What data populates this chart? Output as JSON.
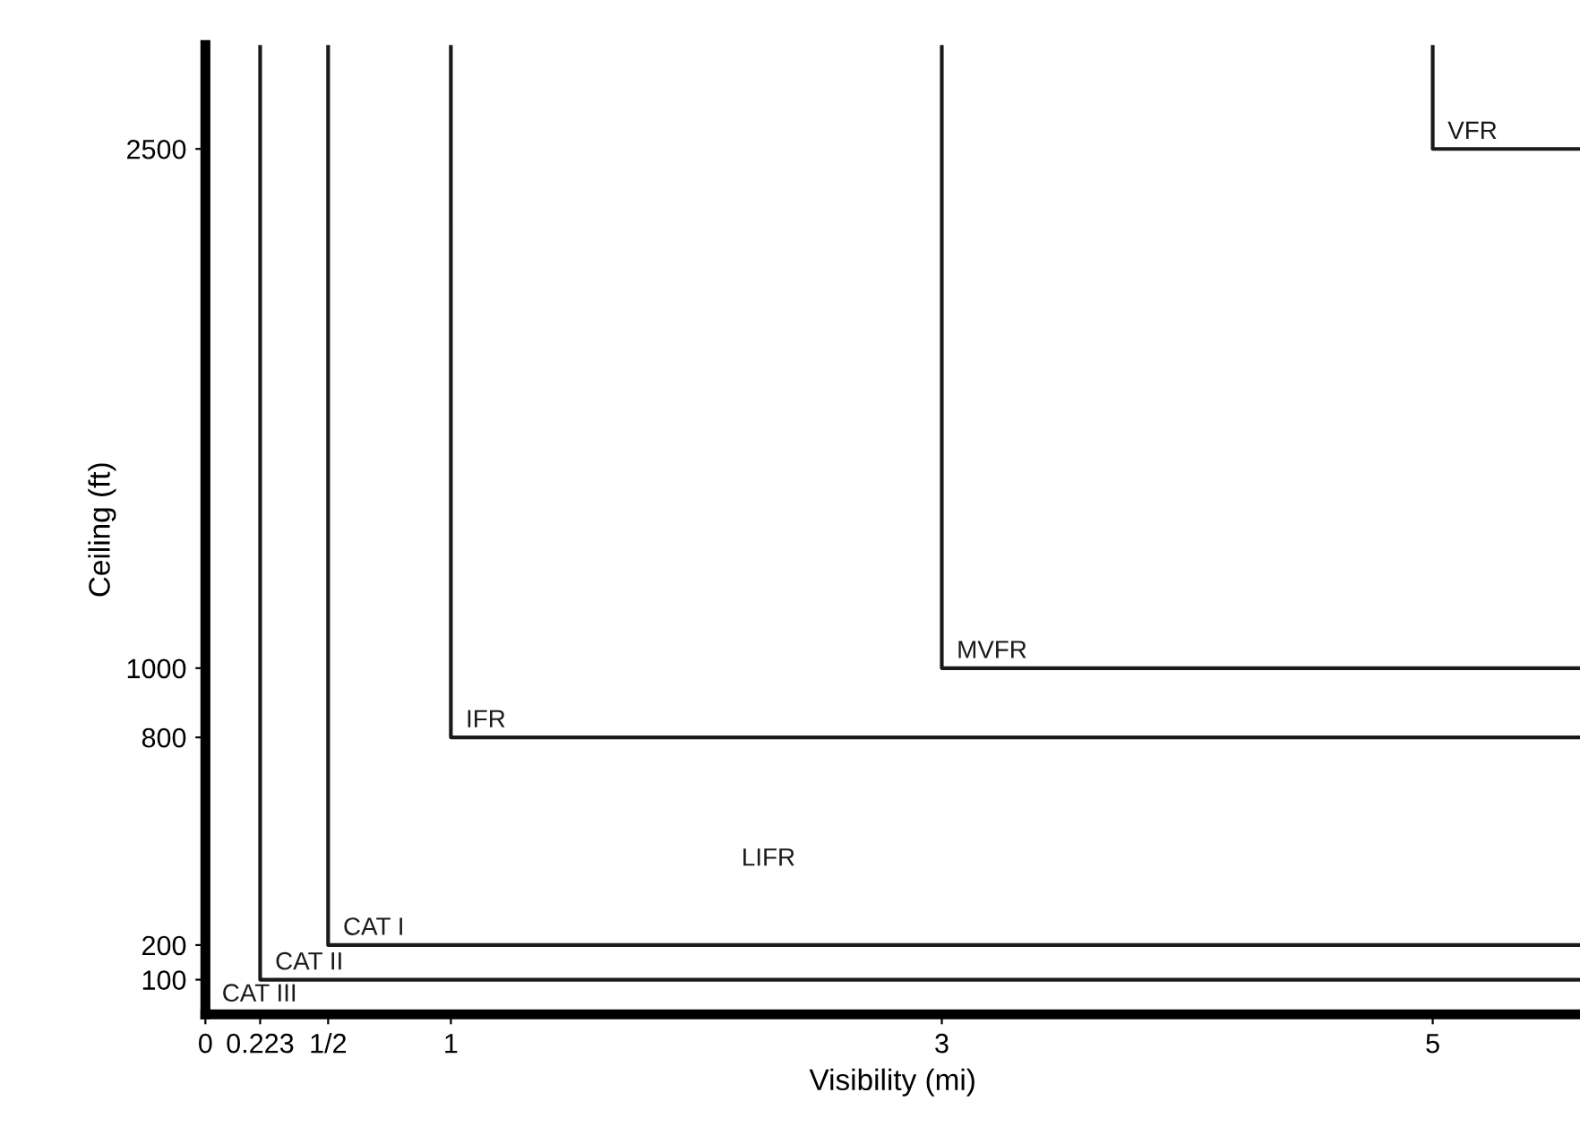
{
  "chart_data": {
    "type": "line",
    "xlabel": "Visibility (mi)",
    "ylabel": "Ceiling (ft)",
    "series": [
      {
        "name": "VFR",
        "color": "#1a1a1a",
        "x": [
          5,
          5,
          5.6
        ],
        "values": [
          2800,
          2500,
          2500
        ]
      },
      {
        "name": "MVFR",
        "color": "#1a1a1a",
        "x": [
          3,
          3,
          5.6
        ],
        "values": [
          2800,
          1000,
          1000
        ]
      },
      {
        "name": "IFR",
        "color": "#1a1a1a",
        "x": [
          1,
          1,
          5.6
        ],
        "values": [
          2800,
          800,
          800
        ]
      },
      {
        "name": "CAT I",
        "color": "#1a1a1a",
        "x": [
          0.5,
          0.5,
          5.6
        ],
        "values": [
          2800,
          200,
          200
        ]
      },
      {
        "name": "CAT II",
        "color": "#1a1a1a",
        "x": [
          0.223,
          0.223,
          5.6
        ],
        "values": [
          2800,
          100,
          100
        ]
      }
    ],
    "annotations": [
      "LIFR",
      "CAT III"
    ],
    "xlim": [
      0,
      5.6
    ],
    "ylim": [
      0,
      2800
    ],
    "xticks": [
      0,
      {
        "value": 0.223,
        "label": "0.223"
      },
      {
        "value": 0.5,
        "label": "1/2"
      },
      1,
      3,
      5
    ],
    "yticks": [
      100,
      200,
      800,
      1000,
      2500
    ],
    "grid": false,
    "legend": false,
    "marker": "none",
    "line_style": "solid"
  }
}
